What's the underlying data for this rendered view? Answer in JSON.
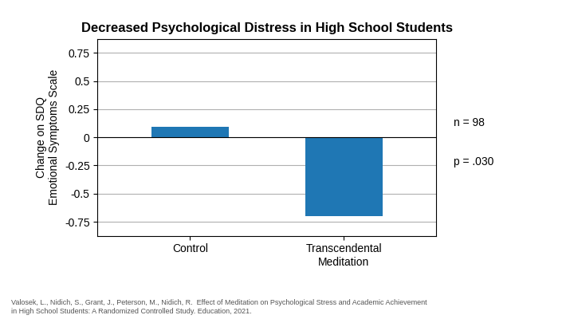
{
  "chart_data": {
    "type": "bar",
    "title": "Decreased Psychological Distress in High School Students",
    "categories": [
      "Control",
      "Transcendental\nMeditation"
    ],
    "values": [
      0.09,
      -0.7
    ],
    "ylabel": "Change on SDQ\nEmotional Symptoms Scale",
    "ylim": [
      -0.875,
      0.875
    ],
    "yticks": [
      -0.75,
      -0.5,
      -0.25,
      0,
      0.25,
      0.5,
      0.75
    ],
    "grid": true,
    "annotations": [
      "n = 98",
      "p = .030"
    ],
    "citation": "Valosek, L., Nidich, S., Grant, J., Peterson, M., Nidich, R.  Effect of Meditation on Psychological Stress and Academic Achievement\nin High School Students: A Randomized Controlled Study. Education, 2021."
  }
}
